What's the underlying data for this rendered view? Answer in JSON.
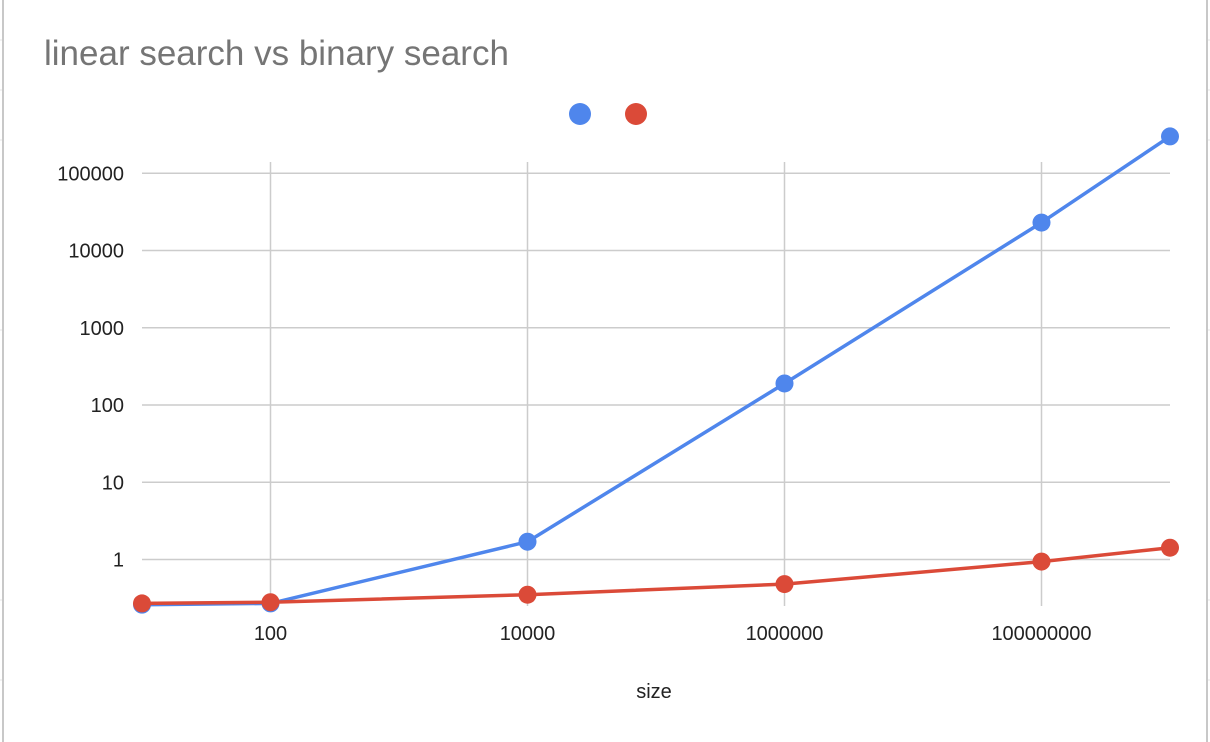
{
  "chart_data": {
    "type": "line",
    "title": "linear search vs binary search",
    "xlabel": "size",
    "ylabel": "",
    "x_scale": "log",
    "y_scale": "log",
    "x": [
      10,
      100,
      10000,
      1000000,
      100000000,
      1000000000
    ],
    "x_ticks": [
      "100",
      "10000",
      "1000000",
      "100000000"
    ],
    "x_tick_values": [
      100,
      10000,
      1000000,
      100000000
    ],
    "y_ticks": [
      "1",
      "10",
      "100",
      "1000",
      "10000",
      "100000"
    ],
    "y_tick_values": [
      1,
      10,
      100,
      1000,
      10000,
      100000
    ],
    "xlim": [
      10,
      1000000000
    ],
    "ylim": [
      0.25,
      140000
    ],
    "grid": true,
    "legend": "top-center",
    "series": [
      {
        "color": "#4f86ec",
        "values": [
          0.26,
          0.27,
          1.7,
          190,
          23000,
          300000
        ]
      },
      {
        "color": "#db4a38",
        "values": [
          0.27,
          0.28,
          0.35,
          0.48,
          0.94,
          1.42
        ]
      }
    ]
  }
}
